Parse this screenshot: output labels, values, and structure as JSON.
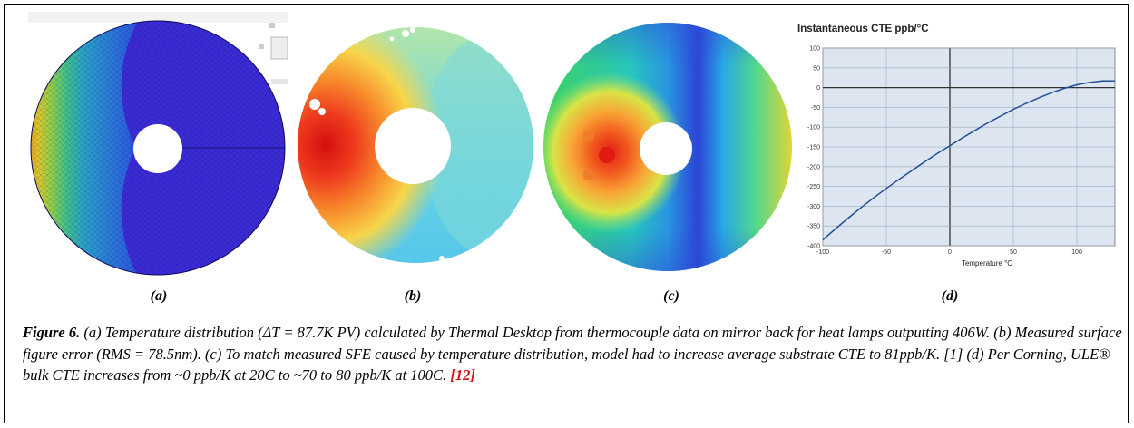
{
  "panels": {
    "a": {
      "label": "(a)"
    },
    "b": {
      "label": "(b)"
    },
    "c": {
      "label": "(c)"
    },
    "d": {
      "label": "(d)"
    }
  },
  "caption": {
    "figure_label": "Figure 6.",
    "text": " (a) Temperature distribution (ΔT = 87.7K PV) calculated by Thermal Desktop from thermocouple data on mirror back for heat lamps outputting 406W. (b) Measured surface figure error (RMS = 78.5nm). (c) To match measured SFE caused by temperature distribution, model had to increase average substrate CTE to 81ppb/K. [1]  (d) Per Corning, ULE® bulk CTE increases from ~0 ppb/K at 20C to ~70 to 80 ppb/K at 100C. ",
    "reference": "[12]"
  },
  "colors": {
    "plot_background": "#dde6f0",
    "curve": "#1f4e96",
    "reference_link": "#d4141b"
  },
  "chart_data": {
    "type": "line",
    "title": "Instantaneous CTE  ppb/°C",
    "xlabel": "Temperature  °C",
    "ylabel": "",
    "xlim": [
      -100,
      130
    ],
    "ylim": [
      -400,
      100
    ],
    "x_ticks": [
      "-100",
      "-50",
      "0",
      "50",
      "100"
    ],
    "y_ticks": [
      "100",
      "50",
      "0",
      "-50",
      "-100",
      "-150",
      "-200",
      "-250",
      "-300",
      "-350",
      "-400"
    ],
    "grid": true,
    "series": [
      {
        "x": [
          -100,
          -90,
          -80,
          -70,
          -60,
          -50,
          -40,
          -30,
          -20,
          -10,
          0,
          10,
          20,
          30,
          40,
          50,
          60,
          70,
          80,
          90,
          100,
          110,
          120,
          130
        ],
        "values": [
          -385,
          -357,
          -330,
          -304,
          -279,
          -255,
          -232,
          -210,
          -188,
          -167,
          -147,
          -127,
          -108,
          -89,
          -72,
          -55,
          -40,
          -26,
          -13,
          -2,
          7,
          13,
          17,
          17
        ]
      }
    ]
  }
}
